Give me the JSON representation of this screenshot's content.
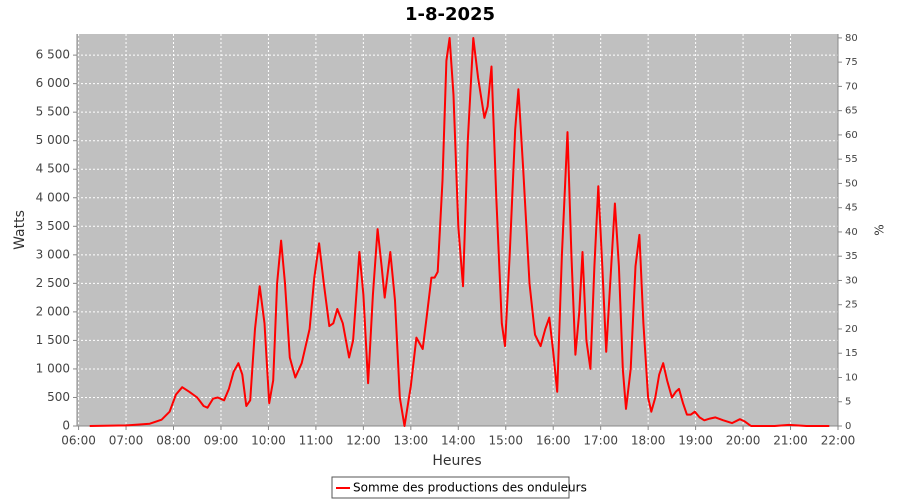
{
  "chart_data": {
    "type": "line",
    "title": "1-8-2025",
    "x_label": "Heures",
    "y_label": "Watts",
    "y2_label": "%",
    "x": [
      "06:14",
      "07:00",
      "07:30",
      "07:45",
      "07:55",
      "08:03",
      "08:11",
      "08:20",
      "08:30",
      "08:38",
      "08:43",
      "08:50",
      "08:56",
      "09:04",
      "09:10",
      "09:16",
      "09:22",
      "09:27",
      "09:32",
      "09:37",
      "09:43",
      "09:49",
      "09:55",
      "10:01",
      "10:06",
      "10:11",
      "10:16",
      "10:21",
      "10:27",
      "10:34",
      "10:42",
      "10:52",
      "10:58",
      "11:04",
      "11:10",
      "11:17",
      "11:22",
      "11:27",
      "11:34",
      "11:42",
      "11:47",
      "11:55",
      "12:00",
      "12:06",
      "12:12",
      "12:18",
      "12:23",
      "12:27",
      "12:34",
      "12:40",
      "12:46",
      "12:52",
      "13:00",
      "13:07",
      "13:15",
      "13:20",
      "13:26",
      "13:30",
      "13:34",
      "13:40",
      "13:45",
      "13:49",
      "13:54",
      "14:00",
      "14:06",
      "14:12",
      "14:19",
      "14:25",
      "14:33",
      "14:37",
      "14:42",
      "14:48",
      "14:55",
      "14:59",
      "15:05",
      "15:12",
      "15:16",
      "15:22",
      "15:30",
      "15:37",
      "15:44",
      "15:50",
      "15:55",
      "16:00",
      "16:05",
      "16:11",
      "16:18",
      "16:23",
      "16:28",
      "16:33",
      "16:37",
      "16:42",
      "16:47",
      "16:52",
      "16:57",
      "17:02",
      "17:07",
      "17:12",
      "17:18",
      "17:23",
      "17:28",
      "17:32",
      "17:38",
      "17:44",
      "17:49",
      "17:54",
      "18:00",
      "18:04",
      "18:09",
      "18:14",
      "18:19",
      "18:24",
      "18:30",
      "18:35",
      "18:39",
      "18:44",
      "18:49",
      "18:54",
      "18:59",
      "19:05",
      "19:11",
      "19:18",
      "19:25",
      "19:35",
      "19:46",
      "19:56",
      "20:02",
      "20:10",
      "20:40",
      "20:58",
      "21:20",
      "21:49"
    ],
    "series": [
      {
        "name": "Somme des productions des onduleurs",
        "color": "#ff0000",
        "values": [
          0,
          10,
          40,
          110,
          250,
          550,
          680,
          600,
          500,
          350,
          320,
          480,
          500,
          450,
          650,
          950,
          1100,
          900,
          350,
          450,
          1700,
          2450,
          1800,
          400,
          800,
          2500,
          3250,
          2500,
          1200,
          850,
          1100,
          1700,
          2600,
          3200,
          2500,
          1750,
          1800,
          2050,
          1800,
          1200,
          1500,
          3050,
          2300,
          750,
          2300,
          3450,
          2800,
          2250,
          3050,
          2200,
          500,
          0,
          700,
          1550,
          1350,
          1900,
          2600,
          2600,
          2700,
          4300,
          6400,
          6800,
          5800,
          3500,
          2450,
          5000,
          6800,
          6100,
          5400,
          5600,
          6300,
          4000,
          1800,
          1400,
          3000,
          5200,
          5900,
          4500,
          2500,
          1600,
          1400,
          1700,
          1900,
          1300,
          600,
          3000,
          5150,
          3000,
          1250,
          2000,
          3050,
          1500,
          1000,
          2800,
          4200,
          2800,
          1300,
          2500,
          3900,
          2800,
          1000,
          300,
          1000,
          2800,
          3350,
          1800,
          500,
          250,
          500,
          900,
          1100,
          800,
          500,
          600,
          650,
          400,
          200,
          200,
          250,
          150,
          100,
          130,
          150,
          100,
          50,
          120,
          80,
          0,
          0,
          20,
          0,
          0
        ]
      }
    ],
    "xlim": [
      "05:58",
      "22:00"
    ],
    "xticks": [
      "06:00",
      "07:00",
      "08:00",
      "09:00",
      "10:00",
      "11:00",
      "12:00",
      "13:00",
      "14:00",
      "15:00",
      "16:00",
      "17:00",
      "18:00",
      "19:00",
      "20:00",
      "21:00",
      "22:00"
    ],
    "ylim": [
      0,
      6870
    ],
    "yticks": [
      0,
      {
        "value": 500,
        "label": "500"
      },
      {
        "value": 1000,
        "label": "1 000"
      },
      {
        "value": 1500,
        "label": "1 500"
      },
      {
        "value": 2000,
        "label": "2 000"
      },
      {
        "value": 2500,
        "label": "2 500"
      },
      {
        "value": 3000,
        "label": "3 000"
      },
      {
        "value": 3500,
        "label": "3 500"
      },
      {
        "value": 4000,
        "label": "4 000"
      },
      {
        "value": 4500,
        "label": "4 500"
      },
      {
        "value": 5000,
        "label": "5 000"
      },
      {
        "value": 5500,
        "label": "5 500"
      },
      {
        "value": 6000,
        "label": "6 000"
      },
      {
        "value": 6500,
        "label": "6 500"
      }
    ],
    "y2lim": [
      0,
      80.8
    ],
    "y2ticks": [
      0,
      5,
      10,
      15,
      20,
      25,
      30,
      35,
      40,
      45,
      50,
      55,
      60,
      65,
      70,
      75,
      80
    ],
    "grid": true,
    "legend": "bottom"
  }
}
